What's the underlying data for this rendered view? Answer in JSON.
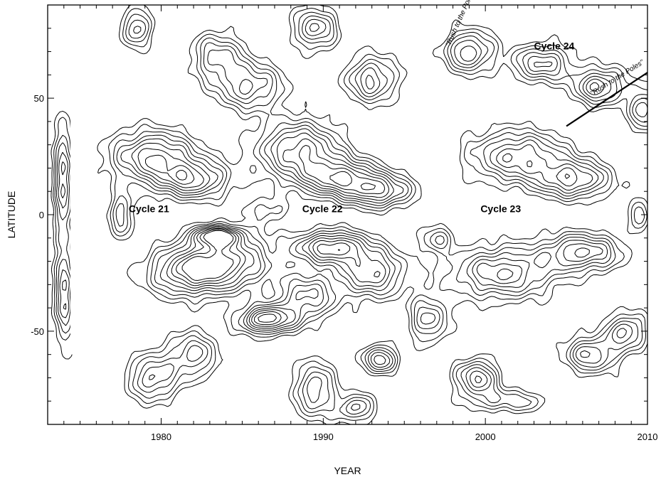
{
  "chart_data": {
    "type": "contour",
    "xlabel": "YEAR",
    "ylabel": "LATITUDE",
    "xlim": [
      1973,
      2010
    ],
    "ylim": [
      -90,
      90
    ],
    "x_ticks": [
      1980,
      1990,
      2000,
      2010
    ],
    "y_ticks": [
      50,
      0,
      -50
    ],
    "y_tick_labels": [
      "50",
      "0",
      "-50"
    ],
    "grid": false,
    "data_gap": [
      1974.4,
      1976.0
    ],
    "contour_color": "#000000",
    "annotations": [
      {
        "text": "Cycle 21",
        "x": 1978.0,
        "y": 1
      },
      {
        "text": "Cycle 22",
        "x": 1988.7,
        "y": 1
      },
      {
        "text": "Cycle 23",
        "x": 1999.7,
        "y": 1
      },
      {
        "text": "Cycle 24",
        "x": 2003.0,
        "y": 71
      },
      {
        "text": "\"Rush to the Poles\"",
        "x": 1997.8,
        "y": 72,
        "angle": -66
      },
      {
        "text": "\"Rush to the Poles\"",
        "x": 2006.6,
        "y": 51,
        "angle": -32
      }
    ],
    "trend_lines": [
      {
        "x": [
          2005.0,
          2010.0
        ],
        "y": [
          38,
          61
        ]
      }
    ],
    "features": [
      {
        "x": 1979.5,
        "y": 25,
        "amp": 1.0,
        "sx": 2.6,
        "sy": 11
      },
      {
        "x": 1982.0,
        "y": 15,
        "amp": 0.9,
        "sx": 2.2,
        "sy": 8
      },
      {
        "x": 1984.0,
        "y": -20,
        "amp": 1.0,
        "sx": 2.8,
        "sy": 12
      },
      {
        "x": 1983.5,
        "y": -9,
        "amp": 1.1,
        "sx": 1.4,
        "sy": 4
      },
      {
        "x": 1981.5,
        "y": -25,
        "amp": 0.8,
        "sx": 2.5,
        "sy": 10
      },
      {
        "x": 1986.5,
        "y": -45,
        "amp": 1.2,
        "sx": 1.7,
        "sy": 6
      },
      {
        "x": 1988.5,
        "y": 28,
        "amp": 1.0,
        "sx": 2.5,
        "sy": 12
      },
      {
        "x": 1991.0,
        "y": 16,
        "amp": 1.0,
        "sx": 2.4,
        "sy": 8
      },
      {
        "x": 1993.5,
        "y": 10,
        "amp": 0.9,
        "sx": 2.0,
        "sy": 7
      },
      {
        "x": 1990.5,
        "y": -14,
        "amp": 1.1,
        "sx": 2.2,
        "sy": 7
      },
      {
        "x": 1993.0,
        "y": -25,
        "amp": 0.9,
        "sx": 2.0,
        "sy": 10
      },
      {
        "x": 1989.0,
        "y": -35,
        "amp": 0.8,
        "sx": 1.8,
        "sy": 10
      },
      {
        "x": 2002.0,
        "y": 25,
        "amp": 0.9,
        "sx": 3.0,
        "sy": 11
      },
      {
        "x": 2005.5,
        "y": 15,
        "amp": 0.9,
        "sx": 2.2,
        "sy": 8
      },
      {
        "x": 2001.0,
        "y": -25,
        "amp": 0.9,
        "sx": 3.2,
        "sy": 11
      },
      {
        "x": 2006.0,
        "y": -16,
        "amp": 0.9,
        "sx": 2.4,
        "sy": 8
      },
      {
        "x": 1999.0,
        "y": 70,
        "amp": 0.9,
        "sx": 1.5,
        "sy": 9
      },
      {
        "x": 1985.5,
        "y": 55,
        "amp": 0.8,
        "sx": 2.0,
        "sy": 10
      },
      {
        "x": 1983.5,
        "y": 68,
        "amp": 0.7,
        "sx": 1.6,
        "sy": 10
      },
      {
        "x": 1989.5,
        "y": 80,
        "amp": 0.8,
        "sx": 1.3,
        "sy": 9
      },
      {
        "x": 1993.0,
        "y": 58,
        "amp": 0.8,
        "sx": 1.6,
        "sy": 10
      },
      {
        "x": 1978.5,
        "y": 80,
        "amp": 0.7,
        "sx": 1.0,
        "sy": 8
      },
      {
        "x": 2003.5,
        "y": 65,
        "amp": 0.8,
        "sx": 1.8,
        "sy": 8
      },
      {
        "x": 2007.0,
        "y": 55,
        "amp": 0.9,
        "sx": 1.6,
        "sy": 8
      },
      {
        "x": 2009.7,
        "y": 45,
        "amp": 0.8,
        "sx": 0.8,
        "sy": 9
      },
      {
        "x": 1979.5,
        "y": -70,
        "amp": 0.8,
        "sx": 1.5,
        "sy": 10
      },
      {
        "x": 1982.0,
        "y": -60,
        "amp": 0.7,
        "sx": 1.5,
        "sy": 10
      },
      {
        "x": 1989.5,
        "y": -75,
        "amp": 0.8,
        "sx": 1.2,
        "sy": 12
      },
      {
        "x": 1992.0,
        "y": -83,
        "amp": 0.7,
        "sx": 1.2,
        "sy": 6
      },
      {
        "x": 1993.5,
        "y": -62,
        "amp": 0.9,
        "sx": 1.0,
        "sy": 6
      },
      {
        "x": 1996.5,
        "y": -45,
        "amp": 0.7,
        "sx": 1.2,
        "sy": 10
      },
      {
        "x": 1999.5,
        "y": -70,
        "amp": 0.9,
        "sx": 1.3,
        "sy": 8
      },
      {
        "x": 2006.5,
        "y": -60,
        "amp": 0.8,
        "sx": 1.6,
        "sy": 8
      },
      {
        "x": 2008.7,
        "y": -50,
        "amp": 0.8,
        "sx": 1.2,
        "sy": 8
      },
      {
        "x": 2001.5,
        "y": -80,
        "amp": 0.5,
        "sx": 2.5,
        "sy": 5
      },
      {
        "x": 1974.0,
        "y": 15,
        "amp": 0.8,
        "sx": 0.6,
        "sy": 25
      },
      {
        "x": 1974.0,
        "y": -35,
        "amp": 0.8,
        "sx": 0.6,
        "sy": 20
      },
      {
        "x": 1977.5,
        "y": 0,
        "amp": 0.6,
        "sx": 0.8,
        "sy": 10
      },
      {
        "x": 1986.5,
        "y": 2,
        "amp": 0.4,
        "sx": 1.2,
        "sy": 5
      },
      {
        "x": 1997.0,
        "y": -10,
        "amp": 0.5,
        "sx": 1.0,
        "sy": 6
      },
      {
        "x": 2009.5,
        "y": 0,
        "amp": 0.6,
        "sx": 0.6,
        "sy": 6
      }
    ]
  }
}
